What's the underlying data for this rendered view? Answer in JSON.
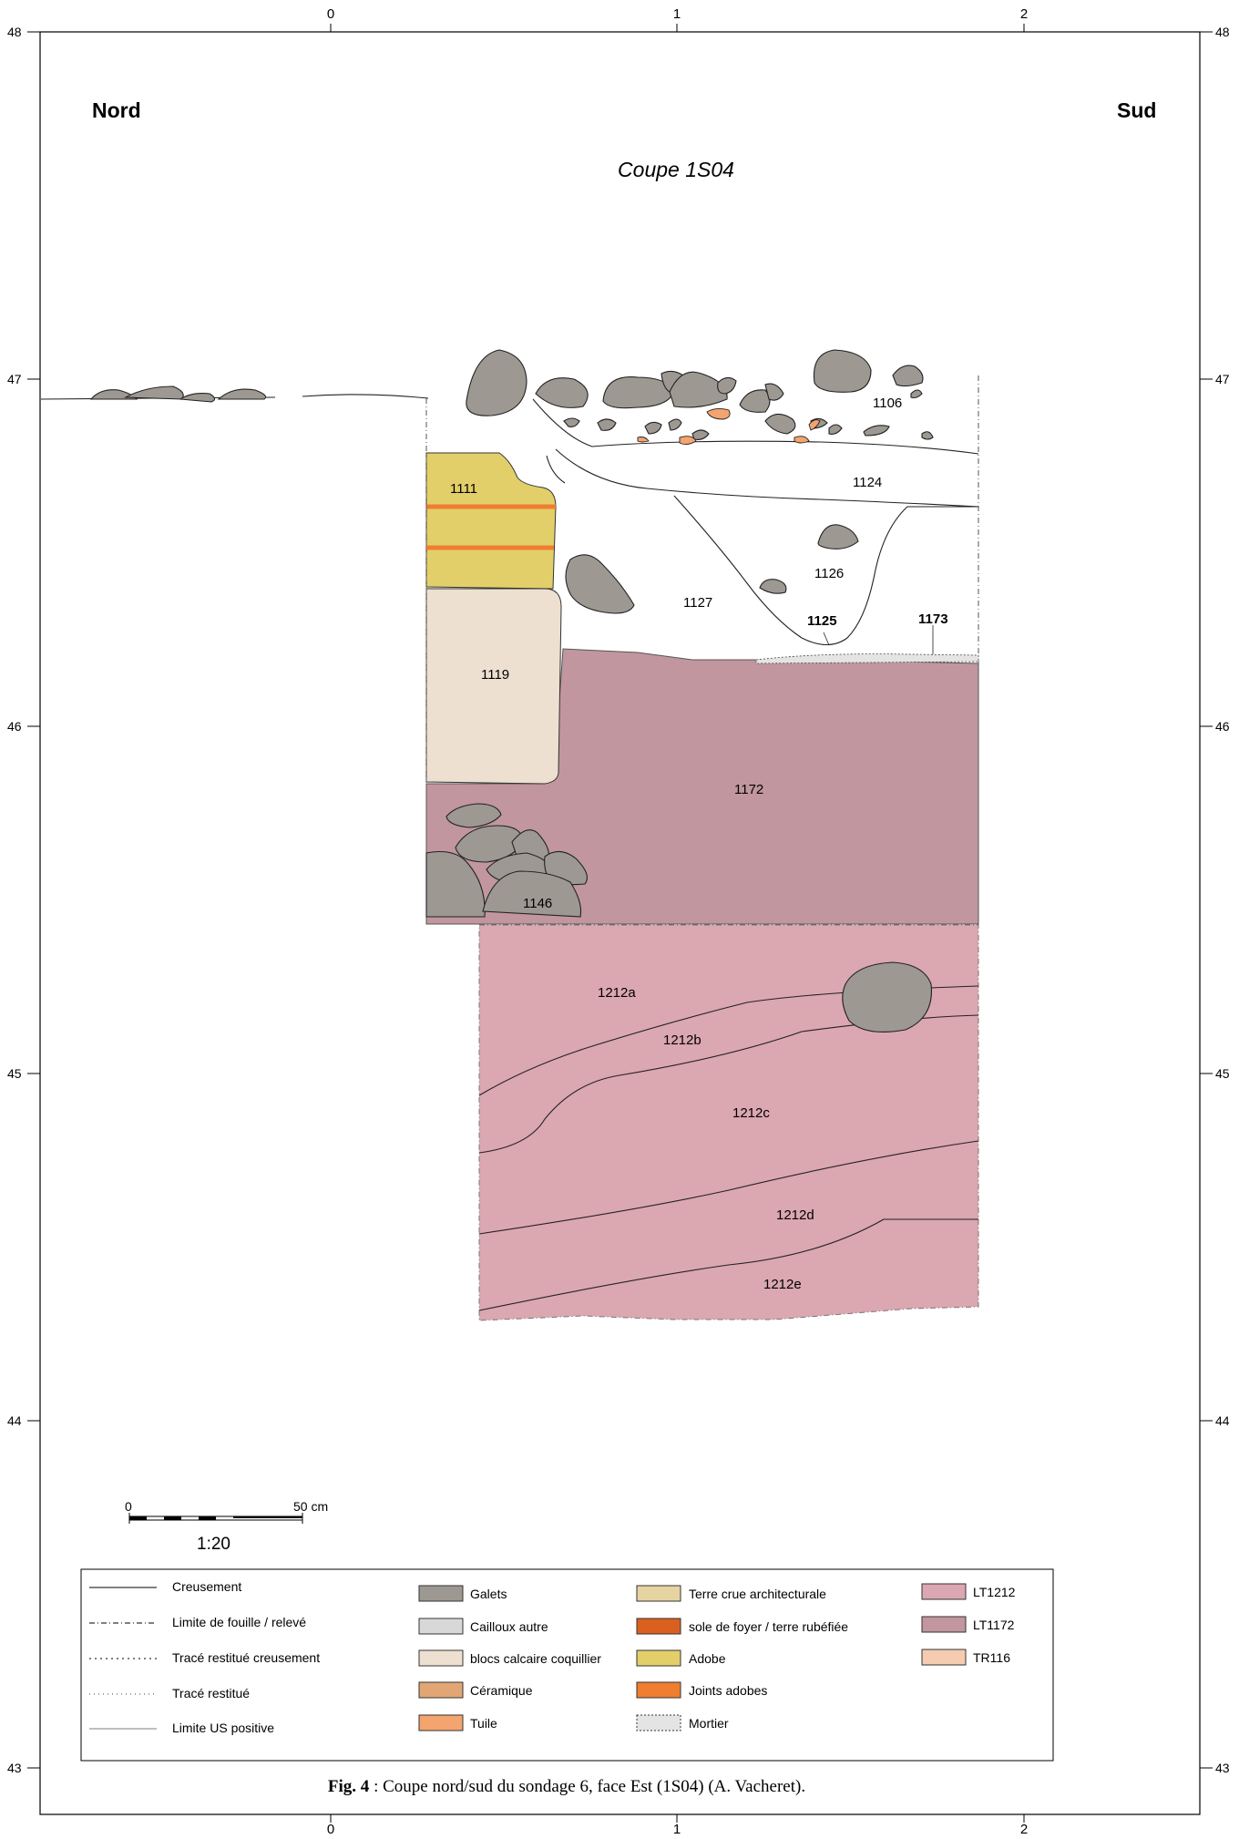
{
  "header": {
    "left_label": "Nord",
    "right_label": "Sud",
    "title": "Coupe 1S04"
  },
  "axes": {
    "x_ticks": [
      "0",
      "1",
      "2"
    ],
    "y_ticks": [
      "48",
      "47",
      "46",
      "45",
      "44",
      "43"
    ]
  },
  "units": {
    "u1106": "1106",
    "u1111": "1111",
    "u1119": "1119",
    "u1124": "1124",
    "u1125": "1125",
    "u1126": "1126",
    "u1127": "1127",
    "u1146": "1146",
    "u1172": "1172",
    "u1173": "1173",
    "u1212a": "1212a",
    "u1212b": "1212b",
    "u1212c": "1212c",
    "u1212d": "1212d",
    "u1212e": "1212e"
  },
  "scale_bar": {
    "start": "0",
    "end": "50 cm",
    "ratio": "1:20"
  },
  "legend": {
    "lines": [
      {
        "label": "Creusement",
        "style": "solid"
      },
      {
        "label": "Limite de fouille / relevé",
        "style": "dashdot"
      },
      {
        "label": "Tracé restitué creusement",
        "style": "dotted"
      },
      {
        "label": "Tracé restitué",
        "style": "fine-dotted"
      },
      {
        "label": "Limite US positive",
        "style": "thin"
      }
    ],
    "col2": [
      {
        "label": "Galets",
        "color": "#9d9892"
      },
      {
        "label": "Cailloux autre",
        "color": "#d8d8d8"
      },
      {
        "label": "blocs calcaire coquillier",
        "color": "#ede0d0"
      },
      {
        "label": "Céramique",
        "color": "#e2a674"
      },
      {
        "label": "Tuile",
        "color": "#f4a46e"
      }
    ],
    "col3": [
      {
        "label": "Terre crue architecturale",
        "color": "#e6d3a2"
      },
      {
        "label": "sole de foyer / terre rubéfiée",
        "color": "#d9601f"
      },
      {
        "label": "Adobe",
        "color": "#e3cf6a"
      },
      {
        "label": "Joints adobes",
        "color": "#f07e30"
      },
      {
        "label": "Mortier",
        "color": "#e4e4e4"
      }
    ],
    "col4": [
      {
        "label": "LT1212",
        "color": "#dba7b0"
      },
      {
        "label": "LT1172",
        "color": "#c1969f"
      },
      {
        "label": "TR116",
        "color": "#f5ccb0"
      }
    ]
  },
  "caption": {
    "bold": "Fig. 4",
    "text": " : Coupe nord/sud du sondage 6, face Est (1S04) (A. Vacheret)."
  }
}
